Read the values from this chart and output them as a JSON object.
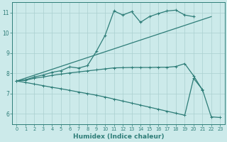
{
  "color": "#2e7d78",
  "bg_color": "#cceaea",
  "grid_color": "#aacfcf",
  "xlabel": "Humidex (Indice chaleur)",
  "xlim": [
    -0.5,
    23.5
  ],
  "ylim": [
    5.5,
    11.5
  ],
  "yticks": [
    6,
    7,
    8,
    9,
    10,
    11
  ],
  "xticks": [
    0,
    1,
    2,
    3,
    4,
    5,
    6,
    7,
    8,
    9,
    10,
    11,
    12,
    13,
    14,
    15,
    16,
    17,
    18,
    19,
    20,
    21,
    22,
    23
  ],
  "line1_x": [
    0,
    1,
    2,
    3,
    4,
    5,
    6,
    7,
    8,
    9,
    10,
    11,
    12,
    13,
    14,
    15,
    16,
    17,
    18,
    19,
    20
  ],
  "line1_y": [
    7.62,
    7.68,
    7.82,
    7.92,
    8.05,
    8.13,
    8.32,
    8.26,
    8.38,
    9.08,
    9.88,
    11.08,
    10.88,
    11.05,
    10.52,
    10.8,
    10.95,
    11.08,
    11.12,
    10.88,
    10.8
  ],
  "line2_x": [
    0,
    22
  ],
  "line2_y": [
    7.62,
    10.8
  ],
  "line3_x": [
    0,
    1,
    2,
    3,
    4,
    5,
    6,
    7,
    8,
    9,
    10,
    11,
    12,
    13,
    14,
    15,
    16,
    17,
    18,
    19,
    20,
    21
  ],
  "line3_y": [
    7.62,
    7.66,
    7.76,
    7.82,
    7.9,
    7.96,
    8.02,
    8.07,
    8.12,
    8.17,
    8.22,
    8.27,
    8.28,
    8.29,
    8.29,
    8.29,
    8.3,
    8.3,
    8.34,
    8.48,
    7.88,
    7.18
  ],
  "line4_x": [
    0,
    1,
    2,
    3,
    4,
    5,
    6,
    7,
    8,
    9,
    10,
    11,
    12,
    13,
    14,
    15,
    16,
    17,
    18,
    19,
    20,
    21,
    22,
    23
  ],
  "line4_y": [
    7.62,
    7.55,
    7.47,
    7.39,
    7.31,
    7.24,
    7.16,
    7.08,
    7.0,
    6.92,
    6.83,
    6.73,
    6.63,
    6.53,
    6.43,
    6.33,
    6.23,
    6.13,
    6.03,
    5.93,
    7.75,
    7.2,
    5.85,
    5.82
  ]
}
